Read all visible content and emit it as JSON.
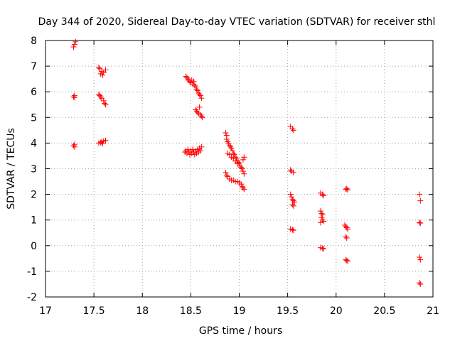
{
  "chart_data": {
    "type": "scatter",
    "title": "Day 344 of 2020, Sidereal Day-to-day VTEC variation (SDTVAR) for receiver sthl",
    "xlabel": "GPS time / hours",
    "ylabel": "SDTVAR / TECUs",
    "xlim": [
      17,
      21
    ],
    "ylim": [
      -2,
      8
    ],
    "xticks": [
      17,
      17.5,
      18,
      18.5,
      19,
      19.5,
      20,
      20.5,
      21
    ],
    "xtick_labels": [
      "17",
      "17.5",
      "18",
      "18.5",
      "19",
      "19.5",
      "20",
      "20.5",
      "21"
    ],
    "yticks": [
      -2,
      -1,
      0,
      1,
      2,
      3,
      4,
      5,
      6,
      7,
      8
    ],
    "ytick_labels": [
      "-2",
      "-1",
      "0",
      "1",
      "2",
      "3",
      "4",
      "5",
      "6",
      "7",
      "8"
    ],
    "grid": true,
    "marker": "+",
    "color": "#ff0000",
    "series": [
      {
        "name": "SDTVAR",
        "points": [
          [
            17.29,
            7.75
          ],
          [
            17.3,
            7.85
          ],
          [
            17.31,
            7.95
          ],
          [
            17.29,
            5.8
          ],
          [
            17.3,
            5.85
          ],
          [
            17.3,
            5.78
          ],
          [
            17.29,
            3.9
          ],
          [
            17.3,
            3.85
          ],
          [
            17.3,
            3.95
          ],
          [
            17.55,
            6.95
          ],
          [
            17.56,
            6.9
          ],
          [
            17.57,
            6.7
          ],
          [
            17.58,
            6.8
          ],
          [
            17.6,
            6.75
          ],
          [
            17.62,
            6.85
          ],
          [
            17.59,
            6.65
          ],
          [
            17.55,
            5.9
          ],
          [
            17.56,
            5.85
          ],
          [
            17.57,
            5.8
          ],
          [
            17.58,
            5.75
          ],
          [
            17.6,
            5.65
          ],
          [
            17.61,
            5.55
          ],
          [
            17.62,
            5.5
          ],
          [
            17.55,
            4.0
          ],
          [
            17.57,
            4.02
          ],
          [
            17.58,
            4.05
          ],
          [
            17.6,
            4.08
          ],
          [
            17.62,
            4.1
          ],
          [
            17.59,
            3.98
          ],
          [
            18.45,
            6.6
          ],
          [
            18.46,
            6.55
          ],
          [
            18.47,
            6.5
          ],
          [
            18.48,
            6.45
          ],
          [
            18.49,
            6.4
          ],
          [
            18.5,
            6.35
          ],
          [
            18.51,
            6.45
          ],
          [
            18.52,
            6.3
          ],
          [
            18.53,
            6.4
          ],
          [
            18.54,
            6.25
          ],
          [
            18.55,
            6.2
          ],
          [
            18.56,
            6.1
          ],
          [
            18.57,
            6.05
          ],
          [
            18.58,
            5.95
          ],
          [
            18.59,
            5.9
          ],
          [
            18.6,
            5.85
          ],
          [
            18.61,
            5.75
          ],
          [
            18.55,
            5.3
          ],
          [
            18.56,
            5.25
          ],
          [
            18.57,
            5.2
          ],
          [
            18.58,
            5.15
          ],
          [
            18.59,
            5.4
          ],
          [
            18.6,
            5.1
          ],
          [
            18.61,
            5.05
          ],
          [
            18.62,
            5.0
          ],
          [
            18.44,
            3.65
          ],
          [
            18.45,
            3.7
          ],
          [
            18.46,
            3.6
          ],
          [
            18.47,
            3.75
          ],
          [
            18.48,
            3.65
          ],
          [
            18.49,
            3.55
          ],
          [
            18.5,
            3.7
          ],
          [
            18.51,
            3.6
          ],
          [
            18.52,
            3.75
          ],
          [
            18.53,
            3.65
          ],
          [
            18.54,
            3.55
          ],
          [
            18.55,
            3.7
          ],
          [
            18.56,
            3.6
          ],
          [
            18.57,
            3.75
          ],
          [
            18.58,
            3.65
          ],
          [
            18.59,
            3.8
          ],
          [
            18.6,
            3.7
          ],
          [
            18.61,
            3.85
          ],
          [
            18.86,
            4.4
          ],
          [
            18.87,
            4.3
          ],
          [
            18.87,
            4.15
          ],
          [
            18.88,
            4.05
          ],
          [
            18.89,
            4.0
          ],
          [
            18.9,
            3.9
          ],
          [
            18.91,
            3.85
          ],
          [
            18.92,
            3.8
          ],
          [
            18.93,
            3.7
          ],
          [
            18.94,
            3.6
          ],
          [
            18.95,
            3.55
          ],
          [
            18.96,
            3.45
          ],
          [
            18.97,
            3.4
          ],
          [
            18.98,
            3.3
          ],
          [
            18.99,
            3.25
          ],
          [
            19.0,
            3.2
          ],
          [
            19.01,
            3.1
          ],
          [
            19.02,
            3.05
          ],
          [
            19.03,
            3.0
          ],
          [
            19.04,
            3.35
          ],
          [
            19.05,
            3.45
          ],
          [
            19.04,
            2.9
          ],
          [
            19.05,
            2.8
          ],
          [
            18.88,
            3.6
          ],
          [
            18.9,
            3.55
          ],
          [
            18.92,
            3.45
          ],
          [
            18.94,
            3.4
          ],
          [
            18.96,
            3.3
          ],
          [
            18.98,
            3.2
          ],
          [
            18.86,
            2.85
          ],
          [
            18.87,
            2.75
          ],
          [
            18.88,
            2.7
          ],
          [
            18.9,
            2.6
          ],
          [
            18.92,
            2.55
          ],
          [
            18.94,
            2.55
          ],
          [
            18.96,
            2.5
          ],
          [
            18.98,
            2.5
          ],
          [
            19.0,
            2.45
          ],
          [
            19.02,
            2.4
          ],
          [
            19.03,
            2.3
          ],
          [
            19.04,
            2.25
          ],
          [
            19.05,
            2.2
          ],
          [
            19.53,
            4.65
          ],
          [
            19.55,
            4.55
          ],
          [
            19.56,
            4.5
          ],
          [
            19.53,
            2.95
          ],
          [
            19.54,
            2.9
          ],
          [
            19.56,
            2.85
          ],
          [
            19.53,
            2.0
          ],
          [
            19.54,
            1.9
          ],
          [
            19.55,
            1.8
          ],
          [
            19.56,
            1.75
          ],
          [
            19.57,
            1.7
          ],
          [
            19.55,
            1.6
          ],
          [
            19.56,
            1.55
          ],
          [
            19.53,
            0.65
          ],
          [
            19.55,
            0.62
          ],
          [
            19.56,
            0.6
          ],
          [
            19.84,
            2.05
          ],
          [
            19.86,
            2.0
          ],
          [
            19.87,
            1.95
          ],
          [
            19.84,
            1.35
          ],
          [
            19.85,
            1.25
          ],
          [
            19.86,
            1.2
          ],
          [
            19.85,
            1.1
          ],
          [
            19.86,
            1.0
          ],
          [
            19.87,
            0.95
          ],
          [
            19.84,
            0.9
          ],
          [
            19.84,
            -0.08
          ],
          [
            19.86,
            -0.1
          ],
          [
            19.87,
            -0.12
          ],
          [
            20.1,
            2.2
          ],
          [
            20.11,
            2.22
          ],
          [
            20.12,
            2.18
          ],
          [
            20.09,
            0.8
          ],
          [
            20.1,
            0.75
          ],
          [
            20.11,
            0.7
          ],
          [
            20.12,
            0.65
          ],
          [
            20.1,
            0.35
          ],
          [
            20.11,
            0.3
          ],
          [
            20.1,
            -0.55
          ],
          [
            20.11,
            -0.58
          ],
          [
            20.12,
            -0.6
          ],
          [
            20.86,
            2.0
          ],
          [
            20.87,
            1.75
          ],
          [
            20.86,
            0.9
          ],
          [
            20.87,
            0.88
          ],
          [
            20.86,
            -0.45
          ],
          [
            20.87,
            -0.55
          ],
          [
            20.86,
            -1.45
          ],
          [
            20.87,
            -1.5
          ]
        ]
      }
    ]
  }
}
